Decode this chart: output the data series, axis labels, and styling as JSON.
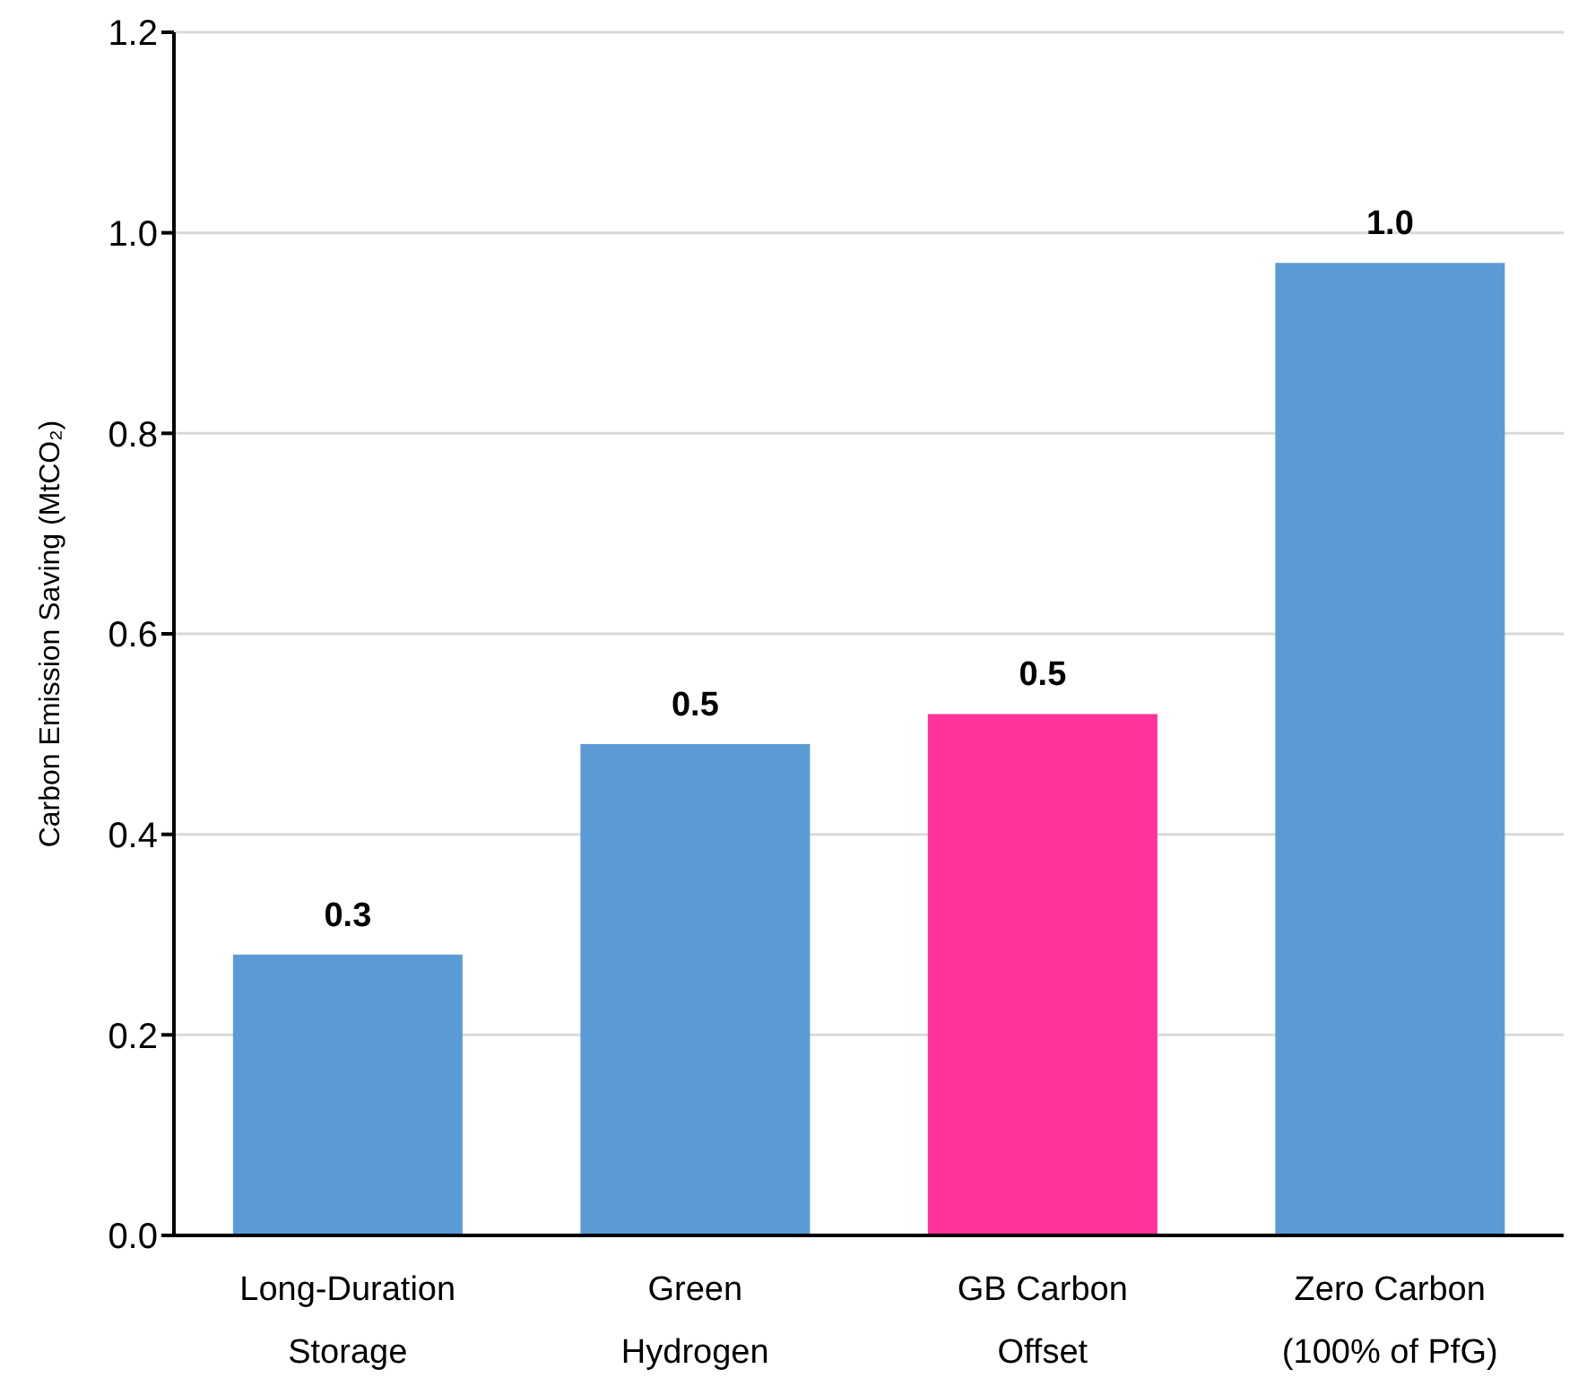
{
  "chart_data": {
    "type": "bar",
    "ylabel": "Carbon Emission Saving (MtCO₂)",
    "categories": [
      "Long-Duration Storage",
      "Green Hydrogen",
      "GB Carbon Offset",
      "Zero Carbon (100% of PfG)"
    ],
    "values": [
      0.28,
      0.49,
      0.52,
      0.97
    ],
    "colors": [
      "#5b9bd5",
      "#5b9bd5",
      "#ff3399",
      "#5b9bd5"
    ],
    "value_labels": [
      "0.3",
      "0.5",
      "0.5",
      "1.0"
    ],
    "ylim": [
      0,
      1.2
    ],
    "yticks": [
      {
        "value": 0,
        "label": "0.0"
      },
      0.2,
      0.4,
      0.6,
      0.8,
      {
        "value": 1,
        "label": "1.0"
      },
      1.2
    ],
    "grid": "y"
  }
}
